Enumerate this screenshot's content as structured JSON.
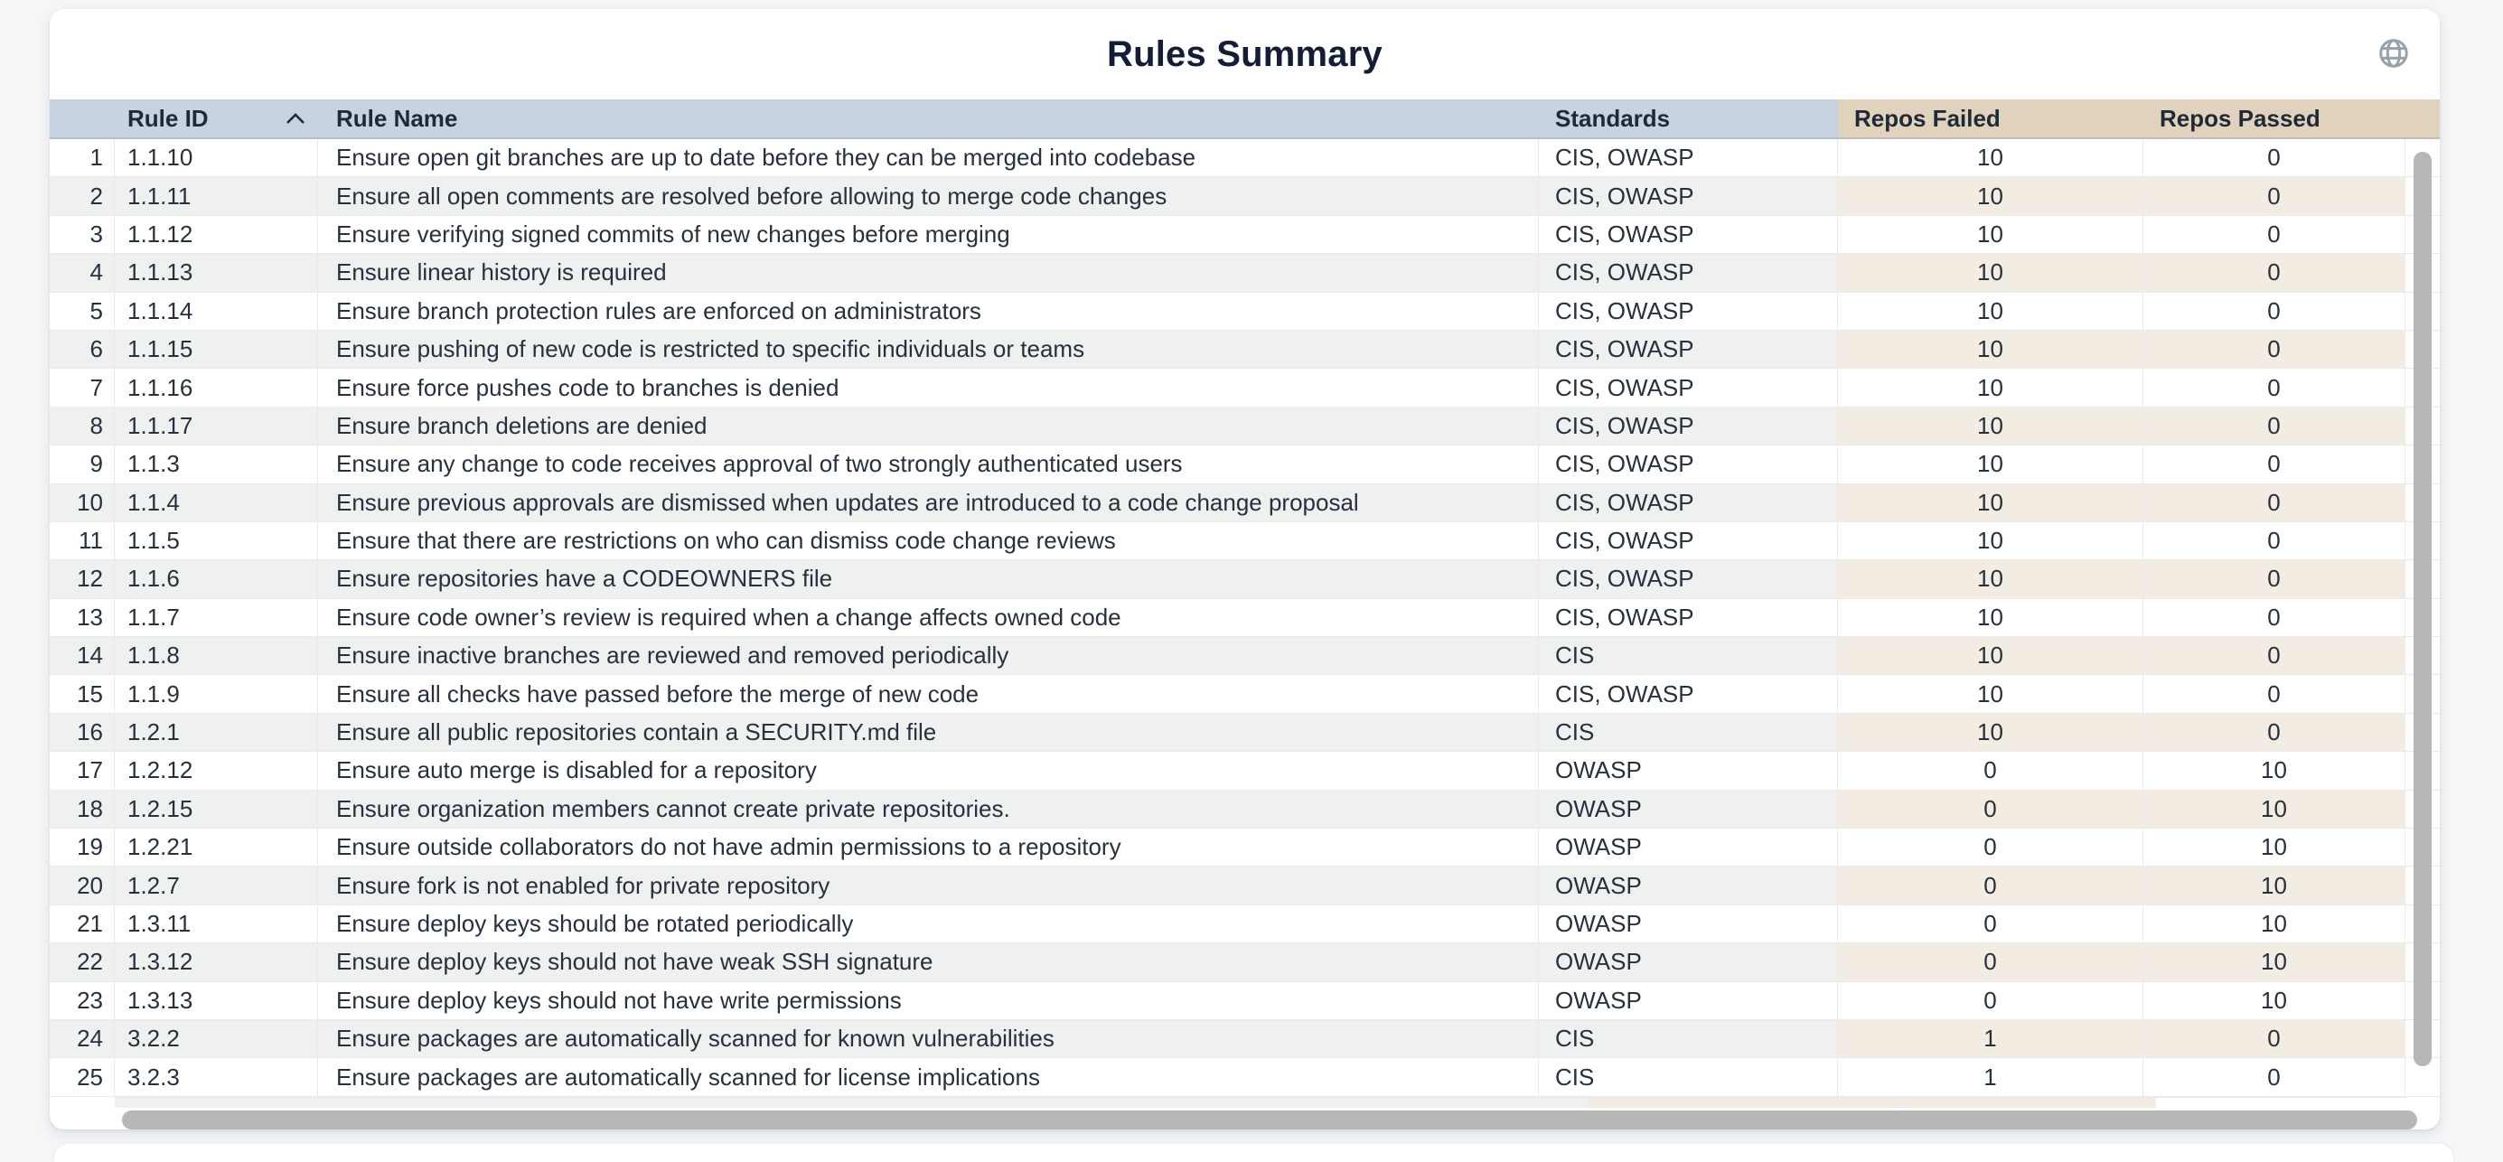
{
  "title": "Rules Summary",
  "toolbar": {
    "globe_icon": "globe-icon"
  },
  "colors": {
    "page_bg": "#f4f6f8",
    "card_bg": "#ffffff",
    "header_blue": "#c7d3e0",
    "header_tan": "#e0d2bc",
    "stripe_gray": "#eff0f0",
    "stripe_tan": "#f3ece2",
    "title_ink": "#131d36",
    "body_ink": "#27303d",
    "scrollbar_thumb": "#b5b7b9"
  },
  "table": {
    "columns": [
      {
        "key": "num",
        "label": "",
        "group": "blue",
        "sorted": null
      },
      {
        "key": "id",
        "label": "Rule ID",
        "group": "blue",
        "sorted": "asc"
      },
      {
        "key": "name",
        "label": "Rule Name",
        "group": "blue",
        "sorted": null
      },
      {
        "key": "std",
        "label": "Standards",
        "group": "blue",
        "sorted": null
      },
      {
        "key": "failed",
        "label": "Repos Failed",
        "group": "tan",
        "sorted": null
      },
      {
        "key": "passed",
        "label": "Repos Passed",
        "group": "tan",
        "sorted": null
      }
    ],
    "rows": [
      [
        1,
        "1.1.10",
        "Ensure open git branches are up to date before they can be merged into codebase",
        "CIS, OWASP",
        10,
        0
      ],
      [
        2,
        "1.1.11",
        "Ensure all open comments are resolved before allowing to merge code changes",
        "CIS, OWASP",
        10,
        0
      ],
      [
        3,
        "1.1.12",
        "Ensure verifying signed commits of new changes before merging",
        "CIS, OWASP",
        10,
        0
      ],
      [
        4,
        "1.1.13",
        "Ensure linear history is required",
        "CIS, OWASP",
        10,
        0
      ],
      [
        5,
        "1.1.14",
        "Ensure branch protection rules are enforced on administrators",
        "CIS, OWASP",
        10,
        0
      ],
      [
        6,
        "1.1.15",
        "Ensure pushing of new code is restricted to specific individuals or teams",
        "CIS, OWASP",
        10,
        0
      ],
      [
        7,
        "1.1.16",
        "Ensure force pushes code to branches is denied",
        "CIS, OWASP",
        10,
        0
      ],
      [
        8,
        "1.1.17",
        "Ensure branch deletions are denied",
        "CIS, OWASP",
        10,
        0
      ],
      [
        9,
        "1.1.3",
        "Ensure any change to code receives approval of two strongly authenticated users",
        "CIS, OWASP",
        10,
        0
      ],
      [
        10,
        "1.1.4",
        "Ensure previous approvals are dismissed when updates are introduced to a code change proposal",
        "CIS, OWASP",
        10,
        0
      ],
      [
        11,
        "1.1.5",
        "Ensure that there are restrictions on who can dismiss code change reviews",
        "CIS, OWASP",
        10,
        0
      ],
      [
        12,
        "1.1.6",
        "Ensure repositories have a CODEOWNERS file",
        "CIS, OWASP",
        10,
        0
      ],
      [
        13,
        "1.1.7",
        "Ensure code owner’s review is required when a change affects owned code",
        "CIS, OWASP",
        10,
        0
      ],
      [
        14,
        "1.1.8",
        "Ensure inactive branches are reviewed and removed periodically",
        "CIS",
        10,
        0
      ],
      [
        15,
        "1.1.9",
        "Ensure all checks have passed before the merge of new code",
        "CIS, OWASP",
        10,
        0
      ],
      [
        16,
        "1.2.1",
        "Ensure all public repositories contain a SECURITY.md file",
        "CIS",
        10,
        0
      ],
      [
        17,
        "1.2.12",
        "Ensure auto merge is disabled for a repository",
        "OWASP",
        0,
        10
      ],
      [
        18,
        "1.2.15",
        "Ensure organization members cannot create private repositories.",
        "OWASP",
        0,
        10
      ],
      [
        19,
        "1.2.21",
        "Ensure outside collaborators do not have admin permissions to a repository",
        "OWASP",
        0,
        10
      ],
      [
        20,
        "1.2.7",
        "Ensure fork is not enabled for private repository",
        "OWASP",
        0,
        10
      ],
      [
        21,
        "1.3.11",
        "Ensure deploy keys should be rotated periodically",
        "OWASP",
        0,
        10
      ],
      [
        22,
        "1.3.12",
        "Ensure deploy keys should not have weak SSH signature",
        "OWASP",
        0,
        10
      ],
      [
        23,
        "1.3.13",
        "Ensure deploy keys should not have write permissions",
        "OWASP",
        0,
        10
      ],
      [
        24,
        "3.2.2",
        "Ensure packages are automatically scanned for known vulnerabilities",
        "CIS",
        1,
        0
      ],
      [
        25,
        "3.2.3",
        "Ensure packages are automatically scanned for license implications",
        "CIS",
        1,
        0
      ]
    ]
  }
}
